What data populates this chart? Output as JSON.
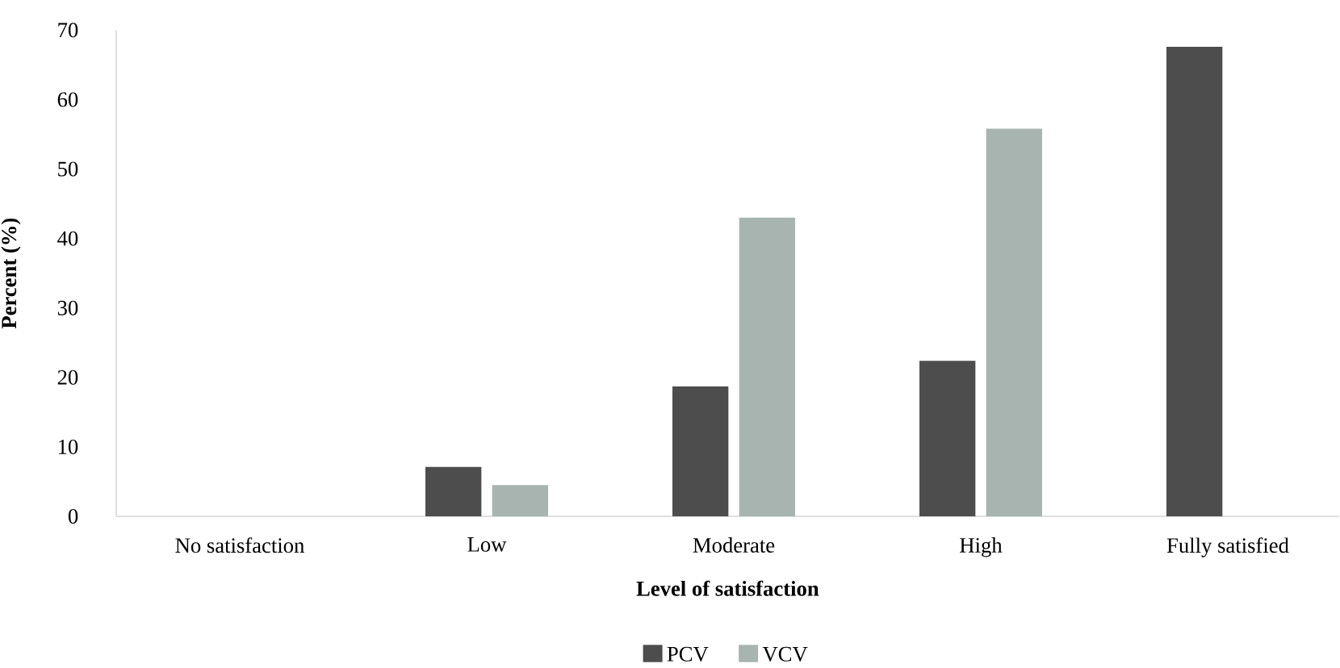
{
  "chart_data": {
    "type": "bar",
    "xlabel": "Level of satisfaction",
    "ylabel": "Percent (%)",
    "categories": [
      "No satisfaction",
      "Low",
      "Moderate",
      "High",
      "Fully satisfied"
    ],
    "series": [
      {
        "name": "PCV",
        "color": "#4d4d4d",
        "values": [
          0,
          7.1,
          18.7,
          22.4,
          67.6
        ]
      },
      {
        "name": "VCV",
        "color": "#a8b4b0",
        "values": [
          0,
          4.5,
          43.0,
          55.8,
          0
        ]
      }
    ],
    "ylim": [
      0,
      70
    ],
    "yticks": [
      0,
      10,
      20,
      30,
      40,
      50,
      60,
      70
    ],
    "legend": "bottom"
  }
}
